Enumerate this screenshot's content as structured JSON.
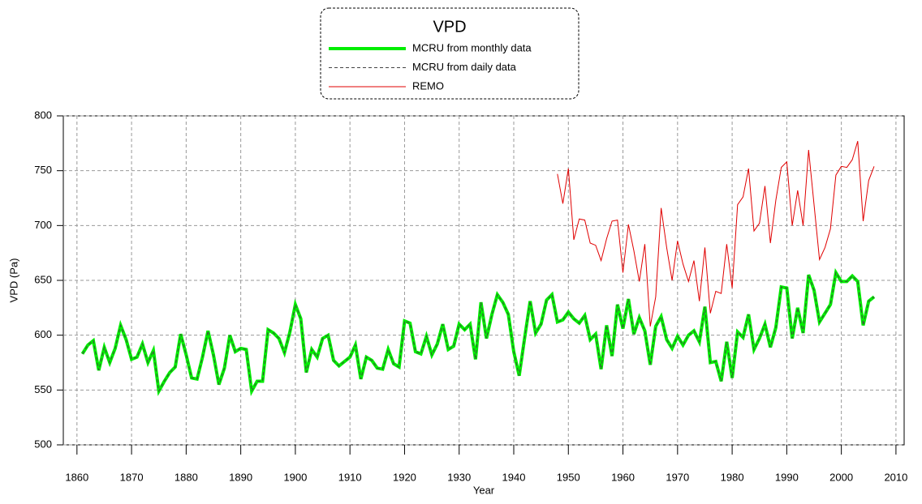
{
  "chart_data": {
    "type": "line",
    "legend_title": "VPD",
    "xlabel": "Year",
    "ylabel": "VPD (Pa)",
    "xlim": [
      1857.5,
      2011.5
    ],
    "xticks": [
      1860,
      1870,
      1880,
      1890,
      1900,
      1910,
      1920,
      1930,
      1940,
      1950,
      1960,
      1970,
      1980,
      1990,
      2000,
      2010
    ],
    "ylim": [
      500,
      800
    ],
    "yticks": [
      500,
      550,
      600,
      650,
      700,
      750,
      800
    ],
    "grid": true,
    "x": [
      1861,
      1862,
      1863,
      1864,
      1865,
      1866,
      1867,
      1868,
      1869,
      1870,
      1871,
      1872,
      1873,
      1874,
      1875,
      1876,
      1877,
      1878,
      1879,
      1880,
      1881,
      1882,
      1883,
      1884,
      1885,
      1886,
      1887,
      1888,
      1889,
      1890,
      1891,
      1892,
      1893,
      1894,
      1895,
      1896,
      1897,
      1898,
      1899,
      1900,
      1901,
      1902,
      1903,
      1904,
      1905,
      1906,
      1907,
      1908,
      1909,
      1910,
      1911,
      1912,
      1913,
      1914,
      1915,
      1916,
      1917,
      1918,
      1919,
      1920,
      1921,
      1922,
      1923,
      1924,
      1925,
      1926,
      1927,
      1928,
      1929,
      1930,
      1931,
      1932,
      1933,
      1934,
      1935,
      1936,
      1937,
      1938,
      1939,
      1940,
      1941,
      1942,
      1943,
      1944,
      1945,
      1946,
      1947,
      1948,
      1949,
      1950,
      1951,
      1952,
      1953,
      1954,
      1955,
      1956,
      1957,
      1958,
      1959,
      1960,
      1961,
      1962,
      1963,
      1964,
      1965,
      1966,
      1967,
      1968,
      1969,
      1970,
      1971,
      1972,
      1973,
      1974,
      1975,
      1976,
      1977,
      1978,
      1979,
      1980,
      1981,
      1982,
      1983,
      1984,
      1985,
      1986,
      1987,
      1988,
      1989,
      1990,
      1991,
      1992,
      1993,
      1994,
      1995,
      1996,
      1997,
      1998,
      1999,
      2000,
      2001,
      2002,
      2003,
      2004,
      2005,
      2006
    ],
    "series": [
      {
        "name": "MCRU from monthly data",
        "color": "#00ee00",
        "width": 4,
        "dashed": false,
        "values": [
          583,
          591,
          595,
          568,
          589,
          575,
          588,
          609,
          596,
          578,
          580,
          592,
          575,
          586,
          549,
          558,
          566,
          571,
          601,
          582,
          561,
          560,
          580,
          604,
          582,
          555,
          570,
          600,
          585,
          588,
          587,
          549,
          558,
          558,
          605,
          602,
          597,
          584,
          603,
          628,
          615,
          566,
          587,
          580,
          597,
          600,
          577,
          572,
          576,
          580,
          591,
          560,
          580,
          577,
          570,
          569,
          587,
          574,
          571,
          613,
          611,
          585,
          583,
          599,
          582,
          592,
          610,
          587,
          590,
          610,
          605,
          610,
          578,
          630,
          597,
          619,
          637,
          630,
          619,
          585,
          563,
          598,
          631,
          602,
          610,
          632,
          637,
          612,
          614,
          621,
          615,
          611,
          618,
          596,
          601,
          569,
          609,
          581,
          628,
          606,
          633,
          601,
          616,
          604,
          573,
          608,
          617,
          596,
          588,
          599,
          591,
          600,
          604,
          594,
          626,
          575,
          576,
          558,
          594,
          561,
          603,
          598,
          619,
          587,
          597,
          610,
          589,
          607,
          644,
          643,
          597,
          625,
          602,
          655,
          641,
          612,
          620,
          628,
          657,
          649,
          649,
          654,
          649,
          609,
          631,
          635
        ]
      },
      {
        "name": "MCRU from daily data",
        "color": "#444444",
        "width": 1,
        "dashed": true,
        "values": [
          583,
          591,
          595,
          568,
          589,
          575,
          588,
          609,
          596,
          578,
          580,
          592,
          575,
          586,
          549,
          558,
          566,
          571,
          601,
          582,
          561,
          560,
          580,
          604,
          582,
          555,
          570,
          600,
          585,
          588,
          587,
          549,
          558,
          558,
          605,
          602,
          597,
          584,
          603,
          628,
          615,
          566,
          587,
          580,
          597,
          600,
          577,
          572,
          576,
          580,
          591,
          560,
          580,
          577,
          570,
          569,
          587,
          574,
          571,
          613,
          611,
          585,
          583,
          599,
          582,
          592,
          610,
          587,
          590,
          610,
          605,
          610,
          578,
          630,
          597,
          619,
          637,
          630,
          619,
          585,
          563,
          598,
          631,
          602,
          610,
          632,
          637,
          612,
          614,
          621,
          615,
          611,
          618,
          596,
          601,
          569,
          609,
          581,
          628,
          606,
          633,
          601,
          616,
          604,
          573,
          608,
          617,
          596,
          588,
          599,
          591,
          600,
          604,
          594,
          626,
          575,
          576,
          558,
          594,
          561,
          603,
          598,
          619,
          587,
          597,
          610,
          589,
          607,
          644,
          643,
          597,
          625,
          602,
          655,
          641,
          612,
          620,
          628,
          657,
          649,
          649,
          654,
          649,
          609,
          631,
          635
        ]
      },
      {
        "name": "REMO",
        "color": "#e00000",
        "width": 1,
        "dashed": false,
        "values": [
          null,
          null,
          null,
          null,
          null,
          null,
          null,
          null,
          null,
          null,
          null,
          null,
          null,
          null,
          null,
          null,
          null,
          null,
          null,
          null,
          null,
          null,
          null,
          null,
          null,
          null,
          null,
          null,
          null,
          null,
          null,
          null,
          null,
          null,
          null,
          null,
          null,
          null,
          null,
          null,
          null,
          null,
          null,
          null,
          null,
          null,
          null,
          null,
          null,
          null,
          null,
          null,
          null,
          null,
          null,
          null,
          null,
          null,
          null,
          null,
          null,
          null,
          null,
          null,
          null,
          null,
          null,
          null,
          null,
          null,
          null,
          null,
          null,
          null,
          null,
          null,
          null,
          null,
          null,
          null,
          null,
          null,
          null,
          null,
          null,
          null,
          null,
          747,
          720,
          752,
          687,
          706,
          705,
          684,
          682,
          668,
          688,
          704,
          705,
          657,
          701,
          677,
          649,
          683,
          608,
          635,
          716,
          680,
          650,
          686,
          665,
          649,
          668,
          631,
          680,
          620,
          640,
          638,
          683,
          643,
          719,
          726,
          752,
          695,
          702,
          736,
          684,
          723,
          753,
          758,
          700,
          732,
          700,
          769,
          719,
          669,
          680,
          697,
          746,
          754,
          753,
          760,
          777,
          704,
          741,
          754
        ]
      }
    ]
  }
}
